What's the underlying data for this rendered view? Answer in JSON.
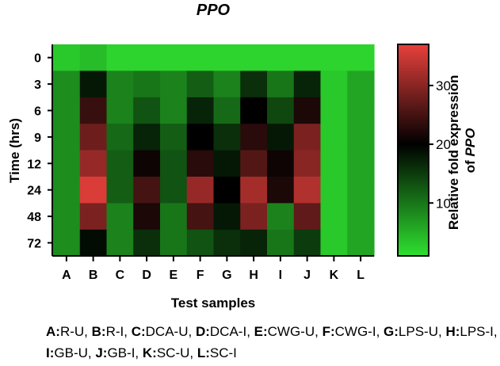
{
  "chart_data": {
    "type": "heatmap",
    "title": "PPO",
    "xlabel": "Test samples",
    "ylabel": "Time (hrs)",
    "x_categories": [
      "A",
      "B",
      "C",
      "D",
      "E",
      "F",
      "G",
      "H",
      "I",
      "J",
      "K",
      "L"
    ],
    "y_categories": [
      "0",
      "3",
      "6",
      "9",
      "12",
      "24",
      "48",
      "72"
    ],
    "values": [
      [
        3,
        4,
        2,
        2,
        2,
        2,
        2,
        2,
        2,
        2,
        2,
        2
      ],
      [
        8,
        18,
        9,
        10,
        9,
        12,
        9,
        16,
        10,
        17,
        3,
        6
      ],
      [
        8,
        24,
        9,
        13,
        9,
        17,
        11,
        20,
        14,
        22,
        3,
        6
      ],
      [
        8,
        28,
        11,
        17,
        12,
        20,
        16,
        23,
        18,
        29,
        3,
        6
      ],
      [
        8,
        31,
        12,
        21,
        13,
        23,
        18,
        26,
        21,
        30,
        3,
        6
      ],
      [
        8,
        36,
        12,
        25,
        13,
        31,
        20,
        32,
        22,
        33,
        3,
        6
      ],
      [
        8,
        29,
        9,
        22,
        10,
        25,
        18,
        29,
        9,
        27,
        3,
        6
      ],
      [
        8,
        19,
        9,
        16,
        10,
        13,
        16,
        17,
        10,
        15,
        3,
        6
      ]
    ],
    "colorbar": {
      "label_prefix": "Relative fold expression",
      "label_line2_prefix": "of",
      "label_italic": "PPO",
      "min": 1,
      "mid": 20,
      "max": 37,
      "ticks": [
        "10",
        "20",
        "30"
      ],
      "tick_values": [
        10,
        20,
        30
      ],
      "colors": {
        "low": "#2ee030",
        "mid": "#000000",
        "high": "#e8403c"
      }
    }
  },
  "legend_items": [
    {
      "code": "A:",
      "name": "R-U"
    },
    {
      "code": "B:",
      "name": "R-I"
    },
    {
      "code": "C:",
      "name": "DCA-U"
    },
    {
      "code": "D:",
      "name": "DCA-I"
    },
    {
      "code": "E:",
      "name": "CWG-U"
    },
    {
      "code": "F:",
      "name": "CWG-I"
    },
    {
      "code": "G:",
      "name": "LPS-U"
    },
    {
      "code": "H:",
      "name": "LPS-I"
    },
    {
      "code": "I:",
      "name": "GB-U"
    },
    {
      "code": "J:",
      "name": "GB-I"
    },
    {
      "code": "K:",
      "name": "SC-U"
    },
    {
      "code": "L:",
      "name": "SC-I"
    }
  ]
}
